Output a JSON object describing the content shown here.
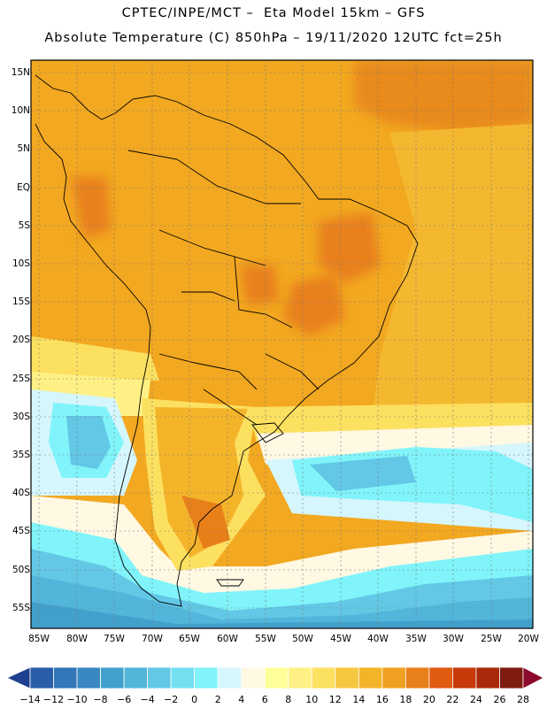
{
  "title": {
    "line1": "CPTEC/INPE/MCT –  Eta Model 15km – GFS",
    "line2": "Absolute Temperature (C) 850hPa – 19/11/2020 12UTC fct=25h"
  },
  "latitude_labels": [
    "15N",
    "10N",
    "5N",
    "EQ",
    "5S",
    "10S",
    "15S",
    "20S",
    "25S",
    "30S",
    "35S",
    "40S",
    "45S",
    "50S",
    "55S"
  ],
  "longitude_labels": [
    "85W",
    "80W",
    "75W",
    "70W",
    "65W",
    "60W",
    "55W",
    "50W",
    "45W",
    "40W",
    "35W",
    "30W",
    "25W",
    "20W"
  ],
  "colorbar": {
    "labels": [
      "-14",
      "-12",
      "-10",
      "-8",
      "-6",
      "-4",
      "-2",
      "0",
      "2",
      "4",
      "6",
      "8",
      "10",
      "12",
      "14",
      "16",
      "18",
      "20",
      "22",
      "24",
      "26",
      "28"
    ],
    "colors": [
      "#1f3f8f",
      "#2a5ea8",
      "#3277b8",
      "#3a88c2",
      "#42a0cc",
      "#52b6da",
      "#62c8e6",
      "#73e0f0",
      "#80f4fa",
      "#d5f6fc",
      "#fff8e3",
      "#ffff99",
      "#fff085",
      "#fce060",
      "#f6c840",
      "#f4b42a",
      "#f0a020",
      "#e8801a",
      "#e05a10",
      "#c83a0a",
      "#a82a0a",
      "#7e1c10",
      "#8c0a2c"
    ]
  }
}
